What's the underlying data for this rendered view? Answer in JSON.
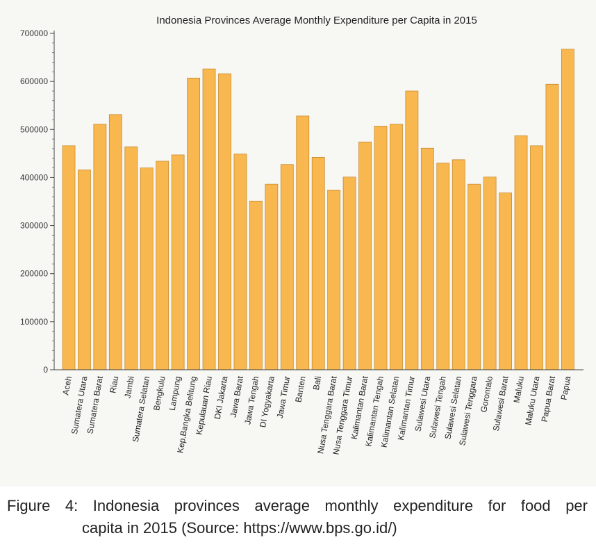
{
  "chart_data": {
    "type": "bar",
    "title": "Indonesia Provinces Average Monthly Expenditure per Capita in 2015",
    "xlabel": "",
    "ylabel": "",
    "ylim": [
      0,
      700000
    ],
    "yticks": [
      0,
      100000,
      200000,
      300000,
      400000,
      500000,
      600000,
      700000
    ],
    "ytick_labels": [
      "0",
      "100000",
      "200000",
      "300000",
      "400000",
      "500000",
      "600000",
      "700000"
    ],
    "categories": [
      "Aceh",
      "Sumatera Utara",
      "Sumatera Barat",
      "Riau",
      "Jambi",
      "Sumatera Selatan",
      "Bengkulu",
      "Lampung",
      "Kep.Bangka Belitung",
      "Kepulauan Riau",
      "DKI Jakarta",
      "Jawa Barat",
      "Jawa Tengah",
      "DI Yogyakarta",
      "Jawa Timur",
      "Banten",
      "Bali",
      "Nusa Tenggara Barat",
      "Nusa Tenggara Timur",
      "Kalimantan Barat",
      "Kalimantan Tengah",
      "Kalimantan Selatan",
      "Kalimantan Timur",
      "Sulawesi Utara",
      "Sulawesi Tengah",
      "Sulawesi Selatan",
      "Sulawesi Tenggara",
      "Gorontalo",
      "Sulawesi Barat",
      "Maluku",
      "Maluku Utara",
      "Papua Barat",
      "Papua"
    ],
    "values": [
      466000,
      416000,
      511000,
      531000,
      464000,
      420000,
      434000,
      447000,
      607000,
      626000,
      616000,
      449000,
      351000,
      386000,
      427000,
      528000,
      442000,
      374000,
      401000,
      474000,
      507000,
      511000,
      580000,
      461000,
      430000,
      437000,
      386000,
      401000,
      368000,
      487000,
      466000,
      594000,
      667000
    ],
    "bar_color": "#f9b84f",
    "bar_edge_color": "#c88a2e",
    "grid": false,
    "legend": "none"
  },
  "caption": {
    "line1": "Figure 4: Indonesia provinces average monthly expenditure for food per",
    "line2": "capita in 2015 (Source: https://www.bps.go.id/)"
  }
}
